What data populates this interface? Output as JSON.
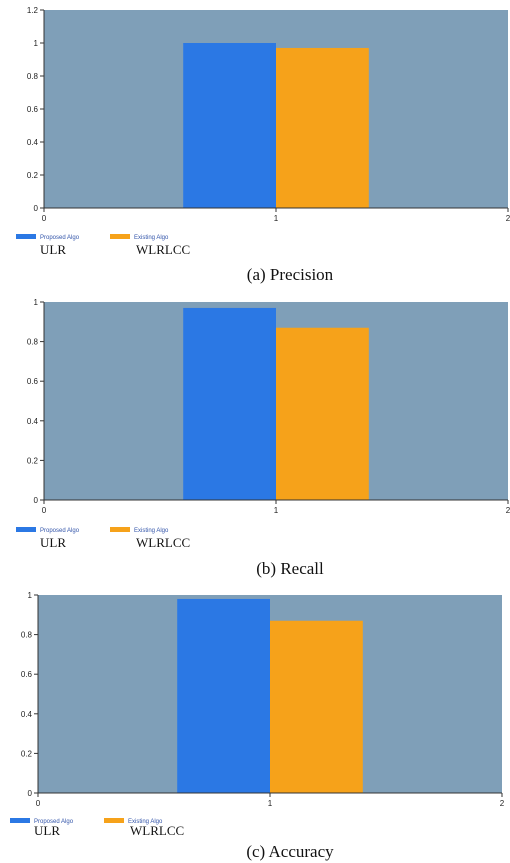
{
  "chart_data": [
    {
      "type": "bar",
      "caption": "(a) Precision",
      "xticks": [
        "0",
        "1",
        "2"
      ],
      "xlim": [
        0,
        2
      ],
      "ylim": [
        0,
        1.2
      ],
      "yticks": [
        "0",
        "0.2",
        "0.4",
        "0.6",
        "0.8",
        "1",
        "1.2"
      ],
      "grid": false,
      "legend_position": "bottom-left",
      "series": [
        {
          "name": "Proposed Algo",
          "sublabel": "ULR",
          "x": 1,
          "value": 1.0,
          "color": "#2b78e4"
        },
        {
          "name": "Existing Algo",
          "sublabel": "WLRLCC",
          "x": 1,
          "value": 0.97,
          "color": "#f6a21a"
        }
      ],
      "plot_background": "#7f9fb8"
    },
    {
      "type": "bar",
      "caption": "(b)  Recall",
      "xticks": [
        "0",
        "1",
        "2"
      ],
      "xlim": [
        0,
        2
      ],
      "ylim": [
        0,
        1
      ],
      "yticks": [
        "0",
        "0.2",
        "0.4",
        "0.6",
        "0.8",
        "1"
      ],
      "grid": false,
      "legend_position": "bottom-left",
      "series": [
        {
          "name": "Proposed Algo",
          "sublabel": "ULR",
          "x": 1,
          "value": 0.97,
          "color": "#2b78e4"
        },
        {
          "name": "Existing Algo",
          "sublabel": "WLRLCC",
          "x": 1,
          "value": 0.87,
          "color": "#f6a21a"
        }
      ],
      "plot_background": "#7f9fb8"
    },
    {
      "type": "bar",
      "caption": "(c)  Accuracy",
      "xticks": [
        "0",
        "1",
        "2"
      ],
      "xlim": [
        0,
        2
      ],
      "ylim": [
        0,
        1
      ],
      "yticks": [
        "0",
        "0.2",
        "0.4",
        "0.6",
        "0.8",
        "1"
      ],
      "grid": false,
      "legend_position": "bottom-left",
      "series": [
        {
          "name": "Proposed Algo",
          "sublabel": "ULR",
          "x": 1,
          "value": 0.98,
          "color": "#2b78e4"
        },
        {
          "name": "Existing Algo",
          "sublabel": "WLRLCC",
          "x": 1,
          "value": 0.87,
          "color": "#f6a21a"
        }
      ],
      "plot_background": "#7f9fb8"
    }
  ]
}
